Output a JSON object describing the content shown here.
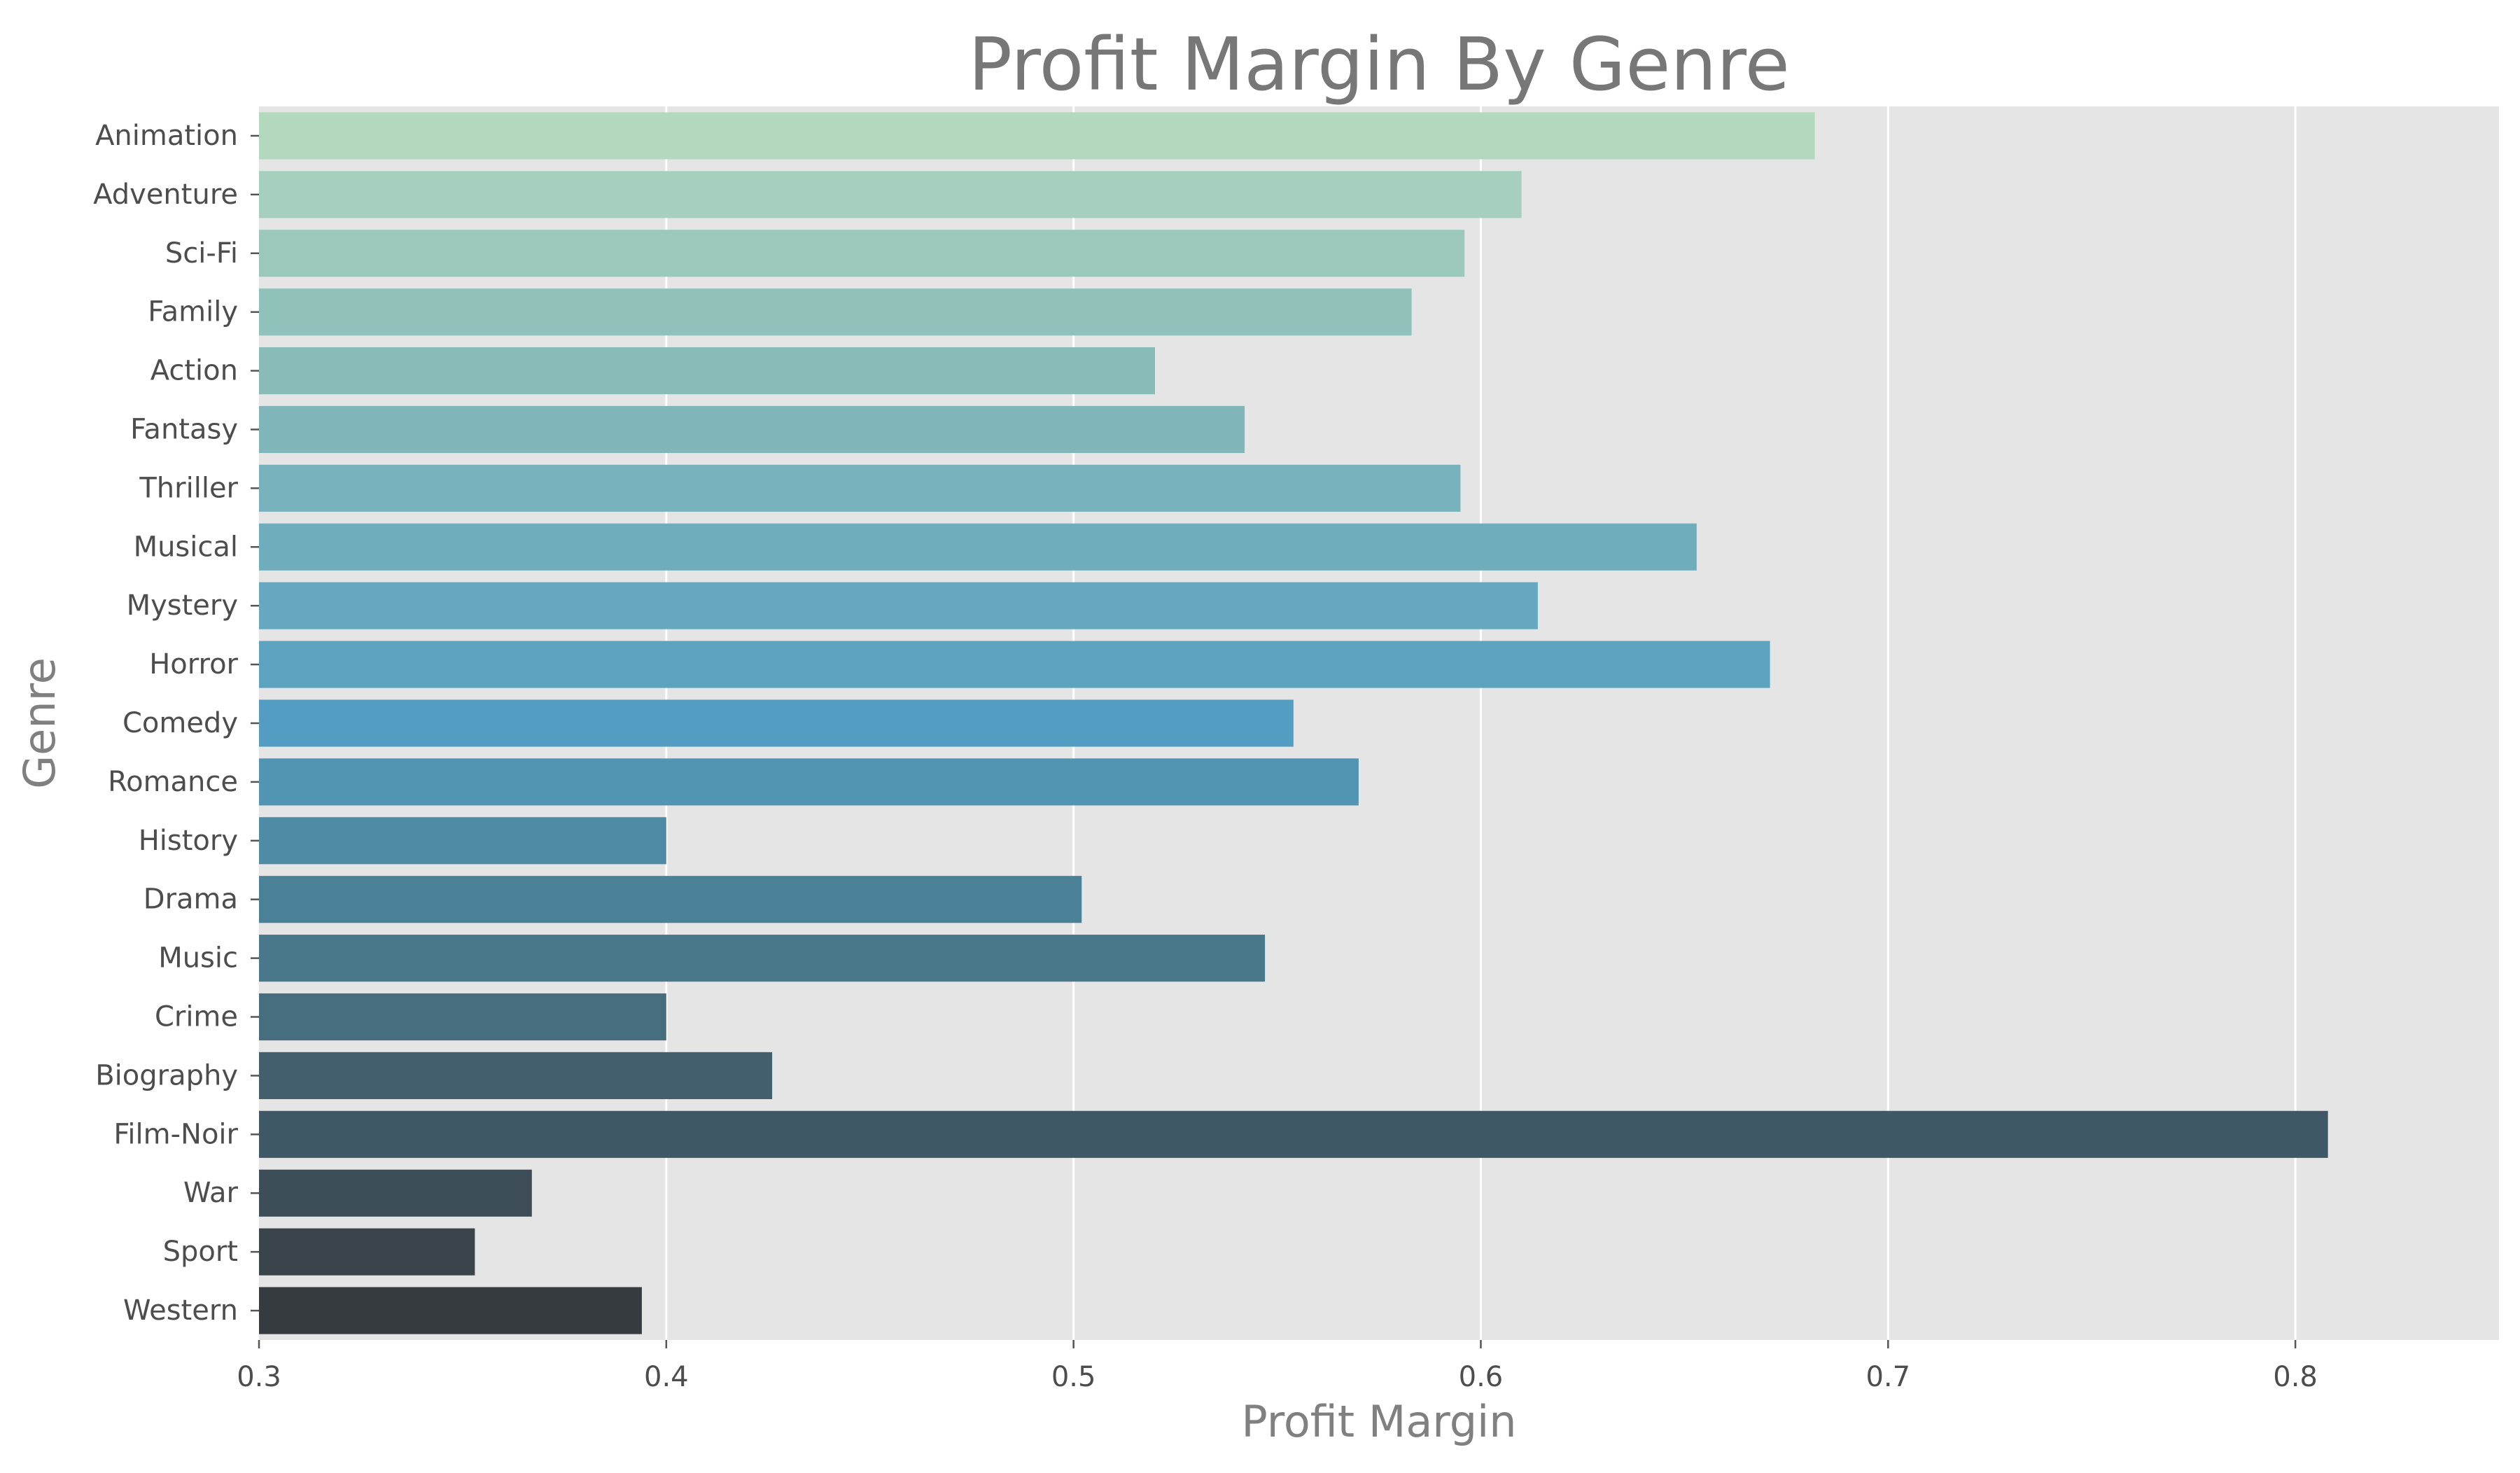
{
  "chart_data": {
    "type": "bar",
    "orientation": "horizontal",
    "title": "Profit Margin By Genre",
    "xlabel": "Profit Margin",
    "ylabel": "Genre",
    "xlim": [
      0.3,
      0.85
    ],
    "xticks": [
      0.3,
      0.4,
      0.5,
      0.6,
      0.7,
      0.8
    ],
    "xtick_labels": [
      "0.3",
      "0.4",
      "0.5",
      "0.6",
      "0.7",
      "0.8"
    ],
    "grid": true,
    "plot_background": "#e5e5e5",
    "categories": [
      "Animation",
      "Adventure",
      "Sci-Fi",
      "Family",
      "Action",
      "Fantasy",
      "Thriller",
      "Musical",
      "Mystery",
      "Horror",
      "Comedy",
      "Romance",
      "History",
      "Drama",
      "Music",
      "Crime",
      "Biography",
      "Film-Noir",
      "War",
      "Sport",
      "Western"
    ],
    "values": [
      0.682,
      0.61,
      0.596,
      0.583,
      0.52,
      0.542,
      0.595,
      0.653,
      0.614,
      0.671,
      0.554,
      0.57,
      0.4,
      0.502,
      0.547,
      0.4,
      0.426,
      0.808,
      0.367,
      0.353,
      0.394
    ],
    "colors": [
      "#b2d8be",
      "#a6d0bd",
      "#9bc8bb",
      "#91c2ba",
      "#89bcb9",
      "#80b6b9",
      "#78b2bc",
      "#70adbc",
      "#67a8c0",
      "#5da2bf",
      "#529dc1",
      "#5195b3",
      "#4f8ba5",
      "#4b8197",
      "#49788a",
      "#466e7e",
      "#435f6e",
      "#3f5866",
      "#3d4e58",
      "#3a444b",
      "#363b40"
    ]
  }
}
